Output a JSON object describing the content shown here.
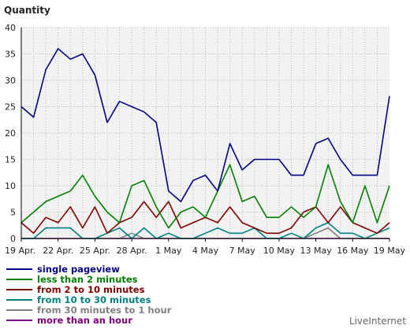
{
  "chart_data": {
    "type": "line",
    "title": "Quantity",
    "ylim": [
      0,
      40
    ],
    "y_ticks": [
      0,
      5,
      10,
      15,
      20,
      25,
      30,
      35,
      40
    ],
    "grid": true,
    "legend_position": "bottom",
    "x": [
      "19 Apr.",
      "20 Apr.",
      "21 Apr.",
      "22 Apr.",
      "23 Apr.",
      "24 Apr.",
      "25 Apr.",
      "26 Apr.",
      "27 Apr.",
      "28 Apr.",
      "29 Apr.",
      "30 Apr.",
      "1 May",
      "2 May",
      "3 May",
      "4 May",
      "5 May",
      "6 May",
      "7 May",
      "8 May",
      "9 May",
      "10 May",
      "11 May",
      "12 May",
      "13 May",
      "14 May",
      "15 May",
      "16 May",
      "17 May",
      "18 May",
      "19 May"
    ],
    "x_tick_labels": [
      "19 Apr.",
      "22 Apr.",
      "25 Apr.",
      "28 Apr.",
      "1 May",
      "4 May",
      "7 May",
      "10 May",
      "13 May",
      "16 May",
      "19 May"
    ],
    "series": [
      {
        "name": "single pageview",
        "color": "#000080",
        "values": [
          25,
          23,
          32,
          36,
          34,
          35,
          31,
          22,
          26,
          25,
          24,
          22,
          9,
          7,
          11,
          12,
          9,
          18,
          13,
          15,
          15,
          15,
          12,
          12,
          18,
          19,
          15,
          12,
          12,
          12,
          27
        ]
      },
      {
        "name": "less than 2 minutes",
        "color": "#008000",
        "values": [
          3,
          5,
          7,
          8,
          9,
          12,
          8,
          5,
          3,
          10,
          11,
          6,
          2,
          5,
          6,
          4,
          9,
          14,
          7,
          8,
          4,
          4,
          6,
          4,
          6,
          14,
          7,
          3,
          10,
          3,
          10
        ]
      },
      {
        "name": "from 2 to 10 minutes",
        "color": "#800000",
        "values": [
          3,
          1,
          4,
          3,
          6,
          2,
          6,
          1,
          3,
          4,
          7,
          4,
          7,
          2,
          3,
          4,
          3,
          6,
          3,
          2,
          1,
          1,
          2,
          5,
          6,
          3,
          6,
          3,
          2,
          1,
          3
        ]
      },
      {
        "name": "from 10 to 30 minutes",
        "color": "#008080",
        "values": [
          0,
          0,
          2,
          2,
          2,
          0,
          0,
          1,
          2,
          0,
          2,
          0,
          1,
          0,
          0,
          1,
          2,
          1,
          1,
          2,
          0,
          0,
          1,
          0,
          2,
          3,
          1,
          1,
          0,
          1,
          2
        ]
      },
      {
        "name": "from 30 minutes to 1 hour",
        "color": "#808080",
        "values": [
          0,
          0,
          0,
          0,
          0,
          0,
          0,
          0,
          0,
          1,
          0,
          0,
          0,
          0,
          0,
          0,
          0,
          0,
          0,
          0,
          0,
          0,
          0,
          0,
          1,
          2,
          0,
          0,
          0,
          0,
          0
        ]
      },
      {
        "name": "more than an hour",
        "color": "#800080",
        "values": [
          0,
          0,
          0,
          0,
          0,
          0,
          0,
          0,
          0,
          0,
          0,
          0,
          0,
          0,
          0,
          0,
          0,
          0,
          0,
          0,
          0,
          0,
          0,
          0,
          0,
          0,
          0,
          0,
          0,
          0,
          0
        ]
      }
    ]
  },
  "brand": "LiveInternet"
}
